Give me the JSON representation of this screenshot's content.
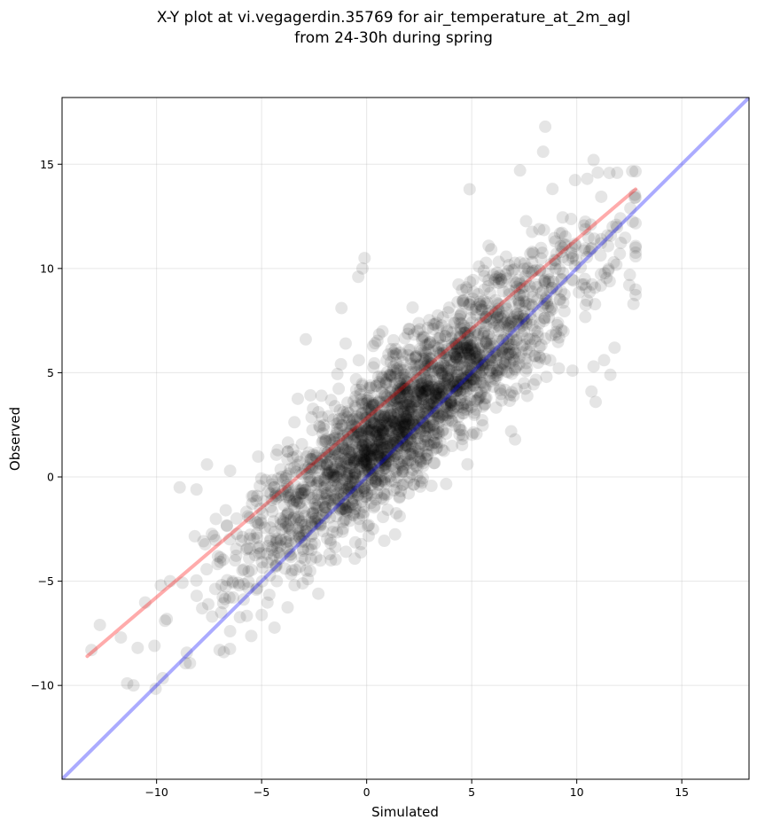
{
  "chart_data": {
    "type": "scatter",
    "title_line1": "X-Y plot at vi.vegagerdin.35769 for air_temperature_at_2m_agl",
    "title_line2": "from 24-30h during spring",
    "xlabel": "Simulated",
    "ylabel": "Observed",
    "xlim": [
      -14.5,
      18.2
    ],
    "ylim": [
      -14.5,
      18.2
    ],
    "xticks": [
      -10,
      -5,
      0,
      5,
      10,
      15
    ],
    "yticks": [
      -10,
      -5,
      0,
      5,
      10,
      15
    ],
    "xtick_labels": [
      "−10",
      "−5",
      "0",
      "5",
      "10",
      "15"
    ],
    "ytick_labels": [
      "−10",
      "−5",
      "0",
      "5",
      "10",
      "15"
    ],
    "grid": true,
    "point_color": "#000000",
    "point_alpha": 0.1,
    "reference_line": {
      "x": [
        -14.5,
        18.2
      ],
      "y": [
        -14.5,
        18.2
      ],
      "color": "#0000ff",
      "alpha": 0.33
    },
    "fit_line": {
      "x": [
        -13.3,
        12.8
      ],
      "y": [
        -8.6,
        13.8
      ],
      "color": "#ff0000",
      "alpha": 0.33
    },
    "outlier_points": [
      [
        8.5,
        16.8
      ],
      [
        8.4,
        15.6
      ],
      [
        10.8,
        15.2
      ],
      [
        11.0,
        14.6
      ],
      [
        7.3,
        14.7
      ],
      [
        4.9,
        13.8
      ],
      [
        10.5,
        14.3
      ],
      [
        12.8,
        11.0
      ],
      [
        12.7,
        8.3
      ],
      [
        12.5,
        9.2
      ],
      [
        11.5,
        9.9
      ],
      [
        10.8,
        5.3
      ],
      [
        10.7,
        4.1
      ],
      [
        10.9,
        3.6
      ],
      [
        11.6,
        4.9
      ],
      [
        11.3,
        5.6
      ],
      [
        9.8,
        5.1
      ],
      [
        11.8,
        6.2
      ],
      [
        -0.1,
        10.5
      ],
      [
        -0.2,
        10.0
      ],
      [
        -0.4,
        9.6
      ],
      [
        -2.9,
        6.6
      ],
      [
        -1.0,
        6.4
      ],
      [
        -1.2,
        8.1
      ],
      [
        0.3,
        -2.5
      ],
      [
        -0.8,
        -2.1
      ],
      [
        -1.7,
        -4.0
      ],
      [
        -2.3,
        -5.6
      ],
      [
        -2.8,
        -4.9
      ],
      [
        -6.8,
        -8.4
      ],
      [
        -7.0,
        -8.3
      ],
      [
        -6.5,
        -7.4
      ],
      [
        -9.6,
        -6.9
      ],
      [
        -10.1,
        -8.1
      ],
      [
        -10.9,
        -8.2
      ],
      [
        -11.4,
        -9.9
      ],
      [
        -11.1,
        -10.0
      ],
      [
        -12.7,
        -7.1
      ],
      [
        -13.1,
        -8.3
      ],
      [
        -8.9,
        -0.5
      ],
      [
        -8.1,
        -0.6
      ],
      [
        -7.6,
        0.6
      ],
      [
        -6.5,
        0.3
      ],
      [
        -9.8,
        -5.2
      ],
      [
        -11.7,
        -7.7
      ]
    ]
  }
}
